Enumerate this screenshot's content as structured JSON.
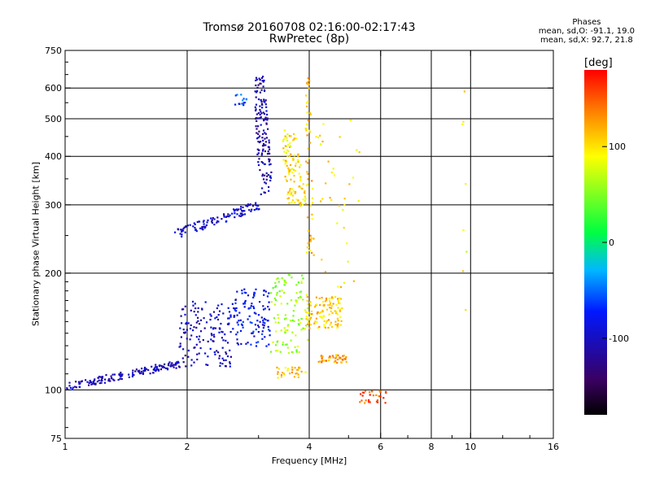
{
  "title_line1": "Tromsø 20160708 02:16:00-02:17:43",
  "title_line2": "RwPretec (8p)",
  "phases": {
    "heading": "Phases",
    "o_line": "mean, sd,O: -91.1, 19.0",
    "x_line": "mean, sd,X: 92.7, 21.8"
  },
  "colorbar": {
    "unit": "[deg]",
    "ticks": [
      {
        "value": 100,
        "label": "100"
      },
      {
        "value": 0,
        "label": "0"
      },
      {
        "value": -100,
        "label": "-100"
      }
    ],
    "range": [
      -180,
      180
    ],
    "colors": [
      "#000000",
      "#3a0060",
      "#0018ff",
      "#00b8ff",
      "#00ff40",
      "#ffff00",
      "#ff8000",
      "#ff0000"
    ]
  },
  "chart_data": {
    "type": "scatter",
    "title": "Tromsø 20160708 02:16:00-02:17:43",
    "subtitle": "RwPretec (8p)",
    "xlabel": "Frequency [MHz]",
    "ylabel": "Stationary phase Virtual Height [km]",
    "xscale": "log",
    "yscale": "log",
    "xlim": [
      1,
      16
    ],
    "ylim": [
      75,
      750
    ],
    "xticks": [
      1,
      2,
      4,
      6,
      8,
      10,
      16
    ],
    "xtick_labels": [
      "1",
      "2",
      "4",
      "6",
      "8",
      "10",
      "16"
    ],
    "xgrid": [
      2,
      4,
      6,
      8,
      10
    ],
    "yticks": [
      75,
      100,
      200,
      300,
      400,
      500,
      600,
      750
    ],
    "ytick_labels": [
      "75",
      "100",
      "200",
      "300",
      "400",
      "500",
      "600",
      "750"
    ],
    "ygrid": [
      100,
      200,
      300,
      400,
      500,
      600
    ],
    "grid": true,
    "color_by": "phase [deg]",
    "clusters": [
      {
        "freq": [
          1.0,
          1.9
        ],
        "height": [
          100,
          120
        ],
        "phase": -105,
        "count": 160,
        "trend": "rising"
      },
      {
        "freq": [
          1.9,
          2.6
        ],
        "height": [
          115,
          170
        ],
        "phase": -100,
        "count": 150,
        "trend": "spread"
      },
      {
        "freq": [
          2.6,
          3.2
        ],
        "height": [
          130,
          185
        ],
        "phase": -80,
        "count": 110,
        "trend": "spread"
      },
      {
        "freq": [
          3.2,
          3.95
        ],
        "height": [
          125,
          200
        ],
        "phase": 60,
        "count": 110,
        "trend": "spread"
      },
      {
        "freq": [
          3.9,
          4.8
        ],
        "height": [
          145,
          175
        ],
        "phase": 110,
        "count": 110,
        "trend": "spread"
      },
      {
        "freq": [
          4.2,
          5.0
        ],
        "height": [
          118,
          124
        ],
        "phase": 130,
        "count": 40,
        "trend": "flat"
      },
      {
        "freq": [
          3.3,
          3.9
        ],
        "height": [
          108,
          115
        ],
        "phase": 110,
        "count": 30,
        "trend": "flat"
      },
      {
        "freq": [
          5.3,
          6.2
        ],
        "height": [
          93,
          100
        ],
        "phase": 150,
        "count": 30,
        "trend": "flat"
      },
      {
        "freq": [
          1.85,
          3.0
        ],
        "height": [
          245,
          310
        ],
        "phase": -95,
        "count": 110,
        "trend": "rising"
      },
      {
        "freq": [
          2.85,
          3.25
        ],
        "height": [
          320,
          650
        ],
        "phase": -110,
        "count": 150,
        "trend": "vertical"
      },
      {
        "freq": [
          3.3,
          3.95
        ],
        "height": [
          300,
          470
        ],
        "phase": 100,
        "count": 110,
        "trend": "vertical"
      },
      {
        "freq": [
          3.85,
          4.1
        ],
        "height": [
          200,
          650
        ],
        "phase": 110,
        "count": 50,
        "trend": "vertical"
      },
      {
        "freq": [
          2.6,
          2.8
        ],
        "height": [
          540,
          580
        ],
        "phase": -60,
        "count": 15,
        "trend": "flat"
      },
      {
        "freq": [
          4.0,
          5.3
        ],
        "height": [
          180,
          500
        ],
        "phase": 100,
        "count": 40,
        "trend": "spread"
      },
      {
        "freq": [
          9.4,
          9.8
        ],
        "height": [
          110,
          620
        ],
        "phase": 90,
        "count": 8,
        "trend": "vertical"
      }
    ]
  }
}
